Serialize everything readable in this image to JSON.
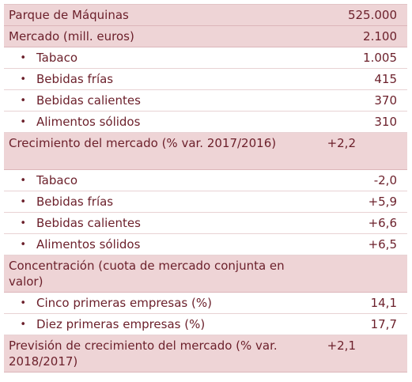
{
  "rows": [
    {
      "kind": "header",
      "label": "Parque de Máquinas",
      "value": "525.000",
      "height": 27
    },
    {
      "kind": "header",
      "label": "Mercado (mill. euros)",
      "value": "2.100",
      "height": 27
    },
    {
      "kind": "sub",
      "label": "Tabaco",
      "value": "1.005",
      "height": 27
    },
    {
      "kind": "sub",
      "label": "Bebidas frías",
      "value": "415",
      "height": 27
    },
    {
      "kind": "sub",
      "label": "Bebidas calientes",
      "value": "370",
      "height": 27
    },
    {
      "kind": "sub",
      "label": "Alimentos sólidos",
      "value": "310",
      "height": 27
    },
    {
      "kind": "header",
      "label": "Crecimiento del mercado (% var. 2017/2016)",
      "value": "+2,2",
      "height": 47,
      "wrap": true
    },
    {
      "kind": "sub",
      "label": "Tabaco",
      "value": "-2,0",
      "height": 27
    },
    {
      "kind": "sub",
      "label": "Bebidas frías",
      "value": "+5,9",
      "height": 27
    },
    {
      "kind": "sub",
      "label": "Bebidas calientes",
      "value": "+6,6",
      "height": 27
    },
    {
      "kind": "sub",
      "label": "Alimentos sólidos",
      "value": "+6,5",
      "height": 27
    },
    {
      "kind": "header",
      "label": "Concentración (cuota de mercado conjunta en valor)",
      "value": "",
      "height": 47,
      "wrap": true
    },
    {
      "kind": "sub",
      "label": "Cinco primeras empresas (%)",
      "value": "14,1",
      "height": 27
    },
    {
      "kind": "sub",
      "label": "Diez primeras empresas (%)",
      "value": "17,7",
      "height": 27
    },
    {
      "kind": "header",
      "label": "Previsión de crecimiento del mercado (% var. 2018/2017)",
      "value": "+2,1",
      "height": 47,
      "wrap": true
    }
  ],
  "bullet_glyph": "•"
}
